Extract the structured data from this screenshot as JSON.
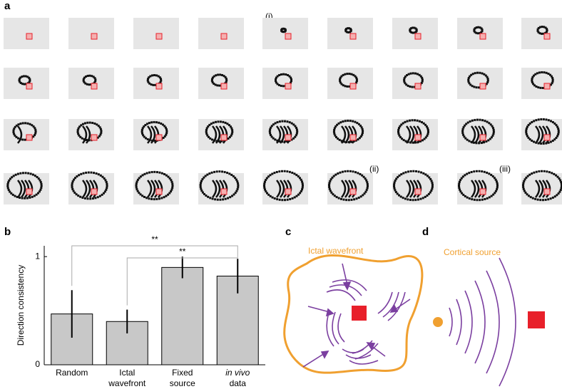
{
  "panels": {
    "a": "a",
    "b": "b",
    "c": "c",
    "d": "d"
  },
  "frame_labels": [
    "(i)",
    "(ii)",
    "(iii)"
  ],
  "chart_data": {
    "type": "bar",
    "y_label": "Direction consistency",
    "categories": [
      [
        "Random"
      ],
      [
        "Ictal",
        "wavefront"
      ],
      [
        "Fixed",
        "source"
      ],
      [
        "in vivo",
        "data"
      ]
    ],
    "values": [
      0.47,
      0.4,
      0.9,
      0.82
    ],
    "errors": [
      0.22,
      0.11,
      0.1,
      0.16
    ],
    "color": "#c8c8c8",
    "ylim": [
      0,
      1.1
    ],
    "yticks": [
      0,
      1
    ],
    "significance": [
      "**",
      "**"
    ]
  },
  "diagram_c": {
    "label": "Ictal wavefront"
  },
  "diagram_d": {
    "label": "Cortical source"
  }
}
